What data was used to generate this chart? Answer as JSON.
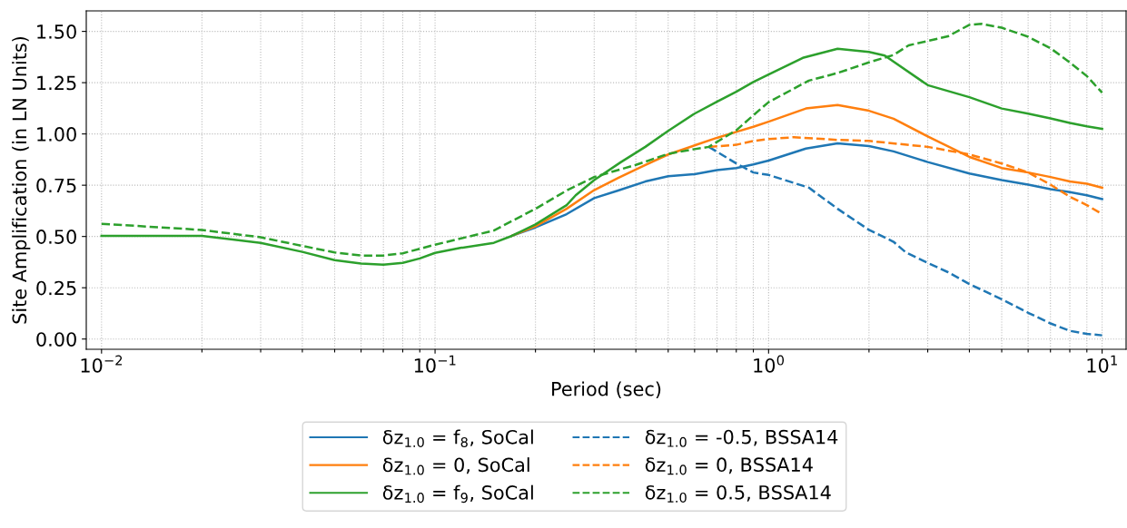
{
  "chart_data": {
    "type": "line",
    "xlabel": "Period (sec)",
    "ylabel": "Site Amplification (in LN Units)",
    "log": "x",
    "grid": true,
    "legend": "bottom",
    "xlim": [
      0.009,
      11.8
    ],
    "ylim": [
      -0.05,
      1.6
    ],
    "xticks": [
      {
        "value": 0.01,
        "label": "10$^{−2}$"
      },
      {
        "value": 0.02,
        "label": null
      },
      {
        "value": 0.03,
        "label": null
      },
      {
        "value": 0.04,
        "label": null
      },
      {
        "value": 0.05,
        "label": null
      },
      {
        "value": 0.06,
        "label": null
      },
      {
        "value": 0.07,
        "label": null
      },
      {
        "value": 0.08,
        "label": null
      },
      {
        "value": 0.09,
        "label": null
      },
      {
        "value": 0.1,
        "label": "10$^{−1}$"
      },
      {
        "value": 0.2,
        "label": null
      },
      {
        "value": 0.3,
        "label": null
      },
      {
        "value": 0.4,
        "label": null
      },
      {
        "value": 0.5,
        "label": null
      },
      {
        "value": 0.6,
        "label": null
      },
      {
        "value": 0.7,
        "label": null
      },
      {
        "value": 0.8,
        "label": null
      },
      {
        "value": 0.9,
        "label": null
      },
      {
        "value": 1,
        "label": "10$^{0}$"
      },
      {
        "value": 2,
        "label": null
      },
      {
        "value": 3,
        "label": null
      },
      {
        "value": 4,
        "label": null
      },
      {
        "value": 5,
        "label": null
      },
      {
        "value": 6,
        "label": null
      },
      {
        "value": 7,
        "label": null
      },
      {
        "value": 8,
        "label": null
      },
      {
        "value": 9,
        "label": null
      },
      {
        "value": 10,
        "label": "10$^{1}$"
      }
    ],
    "yticks": [
      {
        "value": 0,
        "label": "0.00"
      },
      {
        "value": 0.25,
        "label": "0.25"
      },
      {
        "value": 0.5,
        "label": "0.50"
      },
      {
        "value": 0.75,
        "label": "0.75"
      },
      {
        "value": 1.0,
        "label": "1.00"
      },
      {
        "value": 1.25,
        "label": "1.25"
      },
      {
        "value": 1.5,
        "label": "1.50"
      }
    ],
    "series": [
      {
        "name": "δz$_{1.0}$ = f$_{8}$, SoCal",
        "color": "#1f77b4",
        "line_style": "solid",
        "x": [
          0.17,
          0.2,
          0.248,
          0.3,
          0.354,
          0.427,
          0.5,
          0.6,
          0.7,
          0.8,
          0.9,
          1.0,
          1.294,
          1.61,
          2,
          2.37,
          3,
          4,
          5,
          6,
          7,
          8,
          9,
          10
        ],
        "values": [
          0.503,
          0.544,
          0.609,
          0.687,
          0.724,
          0.768,
          0.794,
          0.804,
          0.824,
          0.834,
          0.851,
          0.87,
          0.929,
          0.954,
          0.941,
          0.915,
          0.863,
          0.807,
          0.775,
          0.753,
          0.731,
          0.716,
          0.701,
          0.682
        ]
      },
      {
        "name": "δz$_{1.0}$ = 0, SoCal",
        "color": "#ff7f0e",
        "line_style": "solid",
        "x": [
          0.17,
          0.2,
          0.248,
          0.3,
          0.354,
          0.427,
          0.5,
          0.6,
          0.7,
          0.8,
          0.9,
          1.0,
          1.294,
          1.61,
          2,
          2.37,
          3,
          4,
          5,
          6,
          7,
          8,
          9,
          10
        ],
        "values": [
          0.503,
          0.55,
          0.635,
          0.726,
          0.785,
          0.849,
          0.9,
          0.944,
          0.981,
          1.01,
          1.035,
          1.06,
          1.124,
          1.141,
          1.113,
          1.074,
          0.988,
          0.888,
          0.834,
          0.812,
          0.79,
          0.768,
          0.757,
          0.738
        ]
      },
      {
        "name": "δz$_{1.0}$ = f$_{9}$, SoCal",
        "color": "#2ca02c",
        "line_style": "solid",
        "x": [
          0.01,
          0.02,
          0.03,
          0.04,
          0.05,
          0.06,
          0.07,
          0.08,
          0.09,
          0.1,
          0.119,
          0.15,
          0.17,
          0.2,
          0.248,
          0.264,
          0.3,
          0.361,
          0.427,
          0.5,
          0.6,
          0.7,
          0.8,
          0.9,
          1.0,
          1.266,
          1.61,
          2,
          2.23,
          3,
          4,
          5,
          6,
          7,
          8,
          9,
          10
        ],
        "values": [
          0.503,
          0.503,
          0.469,
          0.425,
          0.385,
          0.368,
          0.363,
          0.371,
          0.393,
          0.42,
          0.444,
          0.469,
          0.503,
          0.559,
          0.653,
          0.701,
          0.775,
          0.863,
          0.937,
          1.015,
          1.099,
          1.157,
          1.206,
          1.253,
          1.29,
          1.371,
          1.415,
          1.4,
          1.382,
          1.238,
          1.179,
          1.124,
          1.099,
          1.076,
          1.054,
          1.037,
          1.025
        ]
      },
      {
        "name": "δz$_{1.0}$ = -0.5, BSSA14",
        "color": "#1f77b4",
        "line_style": "dashed",
        "x": [
          0.662,
          0.8,
          0.9,
          1.0,
          1.32,
          1.61,
          2,
          2.37,
          2.58,
          3,
          3.45,
          4,
          5,
          6,
          7,
          8,
          9,
          10
        ],
        "values": [
          0.937,
          0.856,
          0.812,
          0.8,
          0.738,
          0.635,
          0.532,
          0.474,
          0.422,
          0.371,
          0.326,
          0.268,
          0.194,
          0.128,
          0.076,
          0.04,
          0.025,
          0.018
        ]
      },
      {
        "name": "δz$_{1.0}$ = 0, BSSA14",
        "color": "#ff7f0e",
        "line_style": "dashed",
        "x": [
          0.662,
          0.8,
          0.9,
          1.0,
          1.19,
          1.61,
          2,
          3,
          4,
          5,
          6,
          7,
          8,
          9,
          10
        ],
        "values": [
          0.937,
          0.947,
          0.966,
          0.975,
          0.984,
          0.971,
          0.966,
          0.937,
          0.9,
          0.856,
          0.812,
          0.753,
          0.694,
          0.653,
          0.609
        ]
      },
      {
        "name": "δz$_{1.0}$ = 0.5, BSSA14",
        "color": "#2ca02c",
        "line_style": "dashed",
        "x": [
          0.01,
          0.02,
          0.03,
          0.04,
          0.05,
          0.06,
          0.07,
          0.08,
          0.09,
          0.1,
          0.15,
          0.2,
          0.248,
          0.3,
          0.4,
          0.5,
          0.6,
          0.662,
          0.8,
          0.9,
          1.0,
          1.32,
          1.61,
          2,
          2.37,
          2.63,
          3.45,
          4,
          4.35,
          5,
          6,
          7,
          8,
          9,
          10
        ],
        "values": [
          0.562,
          0.532,
          0.496,
          0.454,
          0.422,
          0.407,
          0.407,
          0.418,
          0.44,
          0.46,
          0.529,
          0.635,
          0.724,
          0.79,
          0.849,
          0.903,
          0.926,
          0.937,
          1.018,
          1.091,
          1.155,
          1.26,
          1.297,
          1.349,
          1.385,
          1.432,
          1.476,
          1.532,
          1.537,
          1.518,
          1.474,
          1.418,
          1.349,
          1.282,
          1.201
        ]
      }
    ]
  }
}
